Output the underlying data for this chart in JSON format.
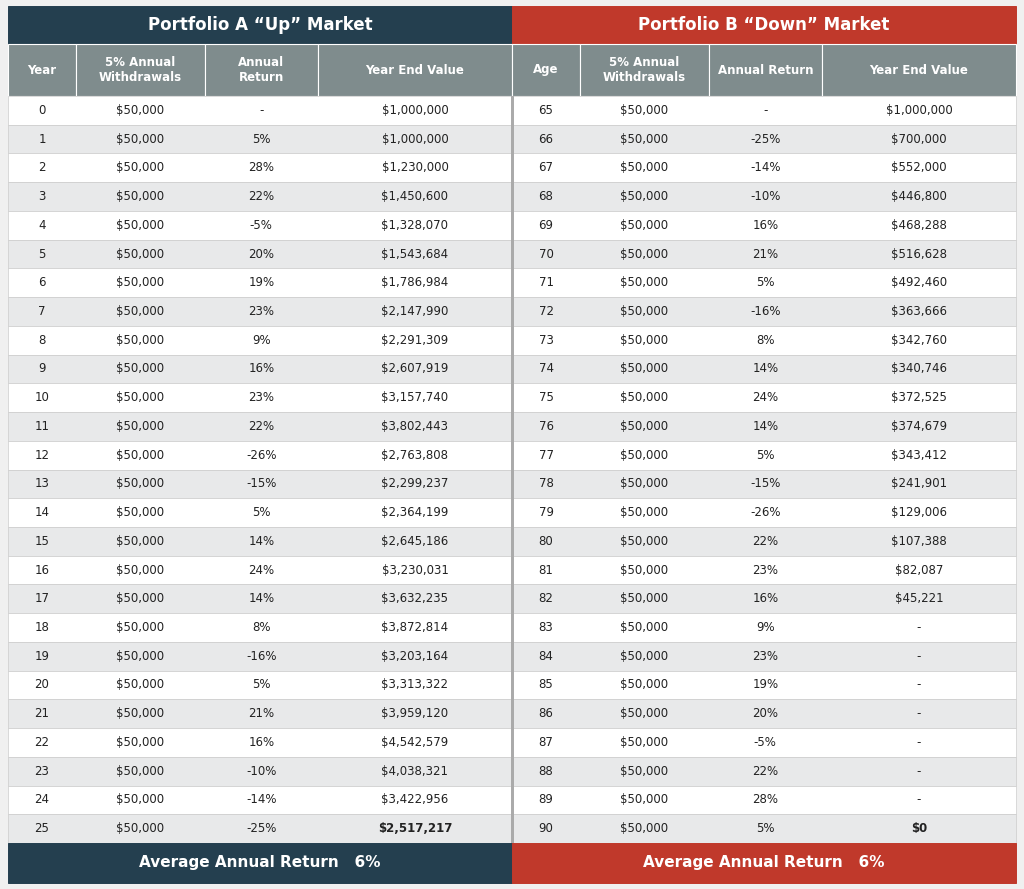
{
  "title_a": "Portfolio A “Up” Market",
  "title_b": "Portfolio B “Down” Market",
  "footer_a": "Average Annual Return   6%",
  "footer_b": "Average Annual Return   6%",
  "col_headers_a": [
    "Year",
    "5% Annual\nWithdrawals",
    "Annual\nReturn",
    "Year End Value"
  ],
  "col_headers_b": [
    "Age",
    "5% Annual\nWithdrawals",
    "Annual Return",
    "Year End Value"
  ],
  "color_header_a": "#243f4f",
  "color_header_b": "#c0392b",
  "color_subheader": "#7f8c8d",
  "color_row_white": "#ffffff",
  "color_row_grey": "#e8e9ea",
  "color_footer_a": "#243f4f",
  "color_footer_b": "#c0392b",
  "color_border": "#c0c0c0",
  "rows": [
    [
      "0",
      "$50,000",
      "-",
      "$1,000,000",
      "65",
      "$50,000",
      "-",
      "$1,000,000"
    ],
    [
      "1",
      "$50,000",
      "5%",
      "$1,000,000",
      "66",
      "$50,000",
      "-25%",
      "$700,000"
    ],
    [
      "2",
      "$50,000",
      "28%",
      "$1,230,000",
      "67",
      "$50,000",
      "-14%",
      "$552,000"
    ],
    [
      "3",
      "$50,000",
      "22%",
      "$1,450,600",
      "68",
      "$50,000",
      "-10%",
      "$446,800"
    ],
    [
      "4",
      "$50,000",
      "-5%",
      "$1,328,070",
      "69",
      "$50,000",
      "16%",
      "$468,288"
    ],
    [
      "5",
      "$50,000",
      "20%",
      "$1,543,684",
      "70",
      "$50,000",
      "21%",
      "$516,628"
    ],
    [
      "6",
      "$50,000",
      "19%",
      "$1,786,984",
      "71",
      "$50,000",
      "5%",
      "$492,460"
    ],
    [
      "7",
      "$50,000",
      "23%",
      "$2,147,990",
      "72",
      "$50,000",
      "-16%",
      "$363,666"
    ],
    [
      "8",
      "$50,000",
      "9%",
      "$2,291,309",
      "73",
      "$50,000",
      "8%",
      "$342,760"
    ],
    [
      "9",
      "$50,000",
      "16%",
      "$2,607,919",
      "74",
      "$50,000",
      "14%",
      "$340,746"
    ],
    [
      "10",
      "$50,000",
      "23%",
      "$3,157,740",
      "75",
      "$50,000",
      "24%",
      "$372,525"
    ],
    [
      "11",
      "$50,000",
      "22%",
      "$3,802,443",
      "76",
      "$50,000",
      "14%",
      "$374,679"
    ],
    [
      "12",
      "$50,000",
      "-26%",
      "$2,763,808",
      "77",
      "$50,000",
      "5%",
      "$343,412"
    ],
    [
      "13",
      "$50,000",
      "-15%",
      "$2,299,237",
      "78",
      "$50,000",
      "-15%",
      "$241,901"
    ],
    [
      "14",
      "$50,000",
      "5%",
      "$2,364,199",
      "79",
      "$50,000",
      "-26%",
      "$129,006"
    ],
    [
      "15",
      "$50,000",
      "14%",
      "$2,645,186",
      "80",
      "$50,000",
      "22%",
      "$107,388"
    ],
    [
      "16",
      "$50,000",
      "24%",
      "$3,230,031",
      "81",
      "$50,000",
      "23%",
      "$82,087"
    ],
    [
      "17",
      "$50,000",
      "14%",
      "$3,632,235",
      "82",
      "$50,000",
      "16%",
      "$45,221"
    ],
    [
      "18",
      "$50,000",
      "8%",
      "$3,872,814",
      "83",
      "$50,000",
      "9%",
      "-"
    ],
    [
      "19",
      "$50,000",
      "-16%",
      "$3,203,164",
      "84",
      "$50,000",
      "23%",
      "-"
    ],
    [
      "20",
      "$50,000",
      "5%",
      "$3,313,322",
      "85",
      "$50,000",
      "19%",
      "-"
    ],
    [
      "21",
      "$50,000",
      "21%",
      "$3,959,120",
      "86",
      "$50,000",
      "20%",
      "-"
    ],
    [
      "22",
      "$50,000",
      "16%",
      "$4,542,579",
      "87",
      "$50,000",
      "-5%",
      "-"
    ],
    [
      "23",
      "$50,000",
      "-10%",
      "$4,038,321",
      "88",
      "$50,000",
      "22%",
      "-"
    ],
    [
      "24",
      "$50,000",
      "-14%",
      "$3,422,956",
      "89",
      "$50,000",
      "28%",
      "-"
    ],
    [
      "25",
      "$50,000",
      "-25%",
      "$2,517,217",
      "90",
      "$50,000",
      "5%",
      "$0"
    ]
  ]
}
